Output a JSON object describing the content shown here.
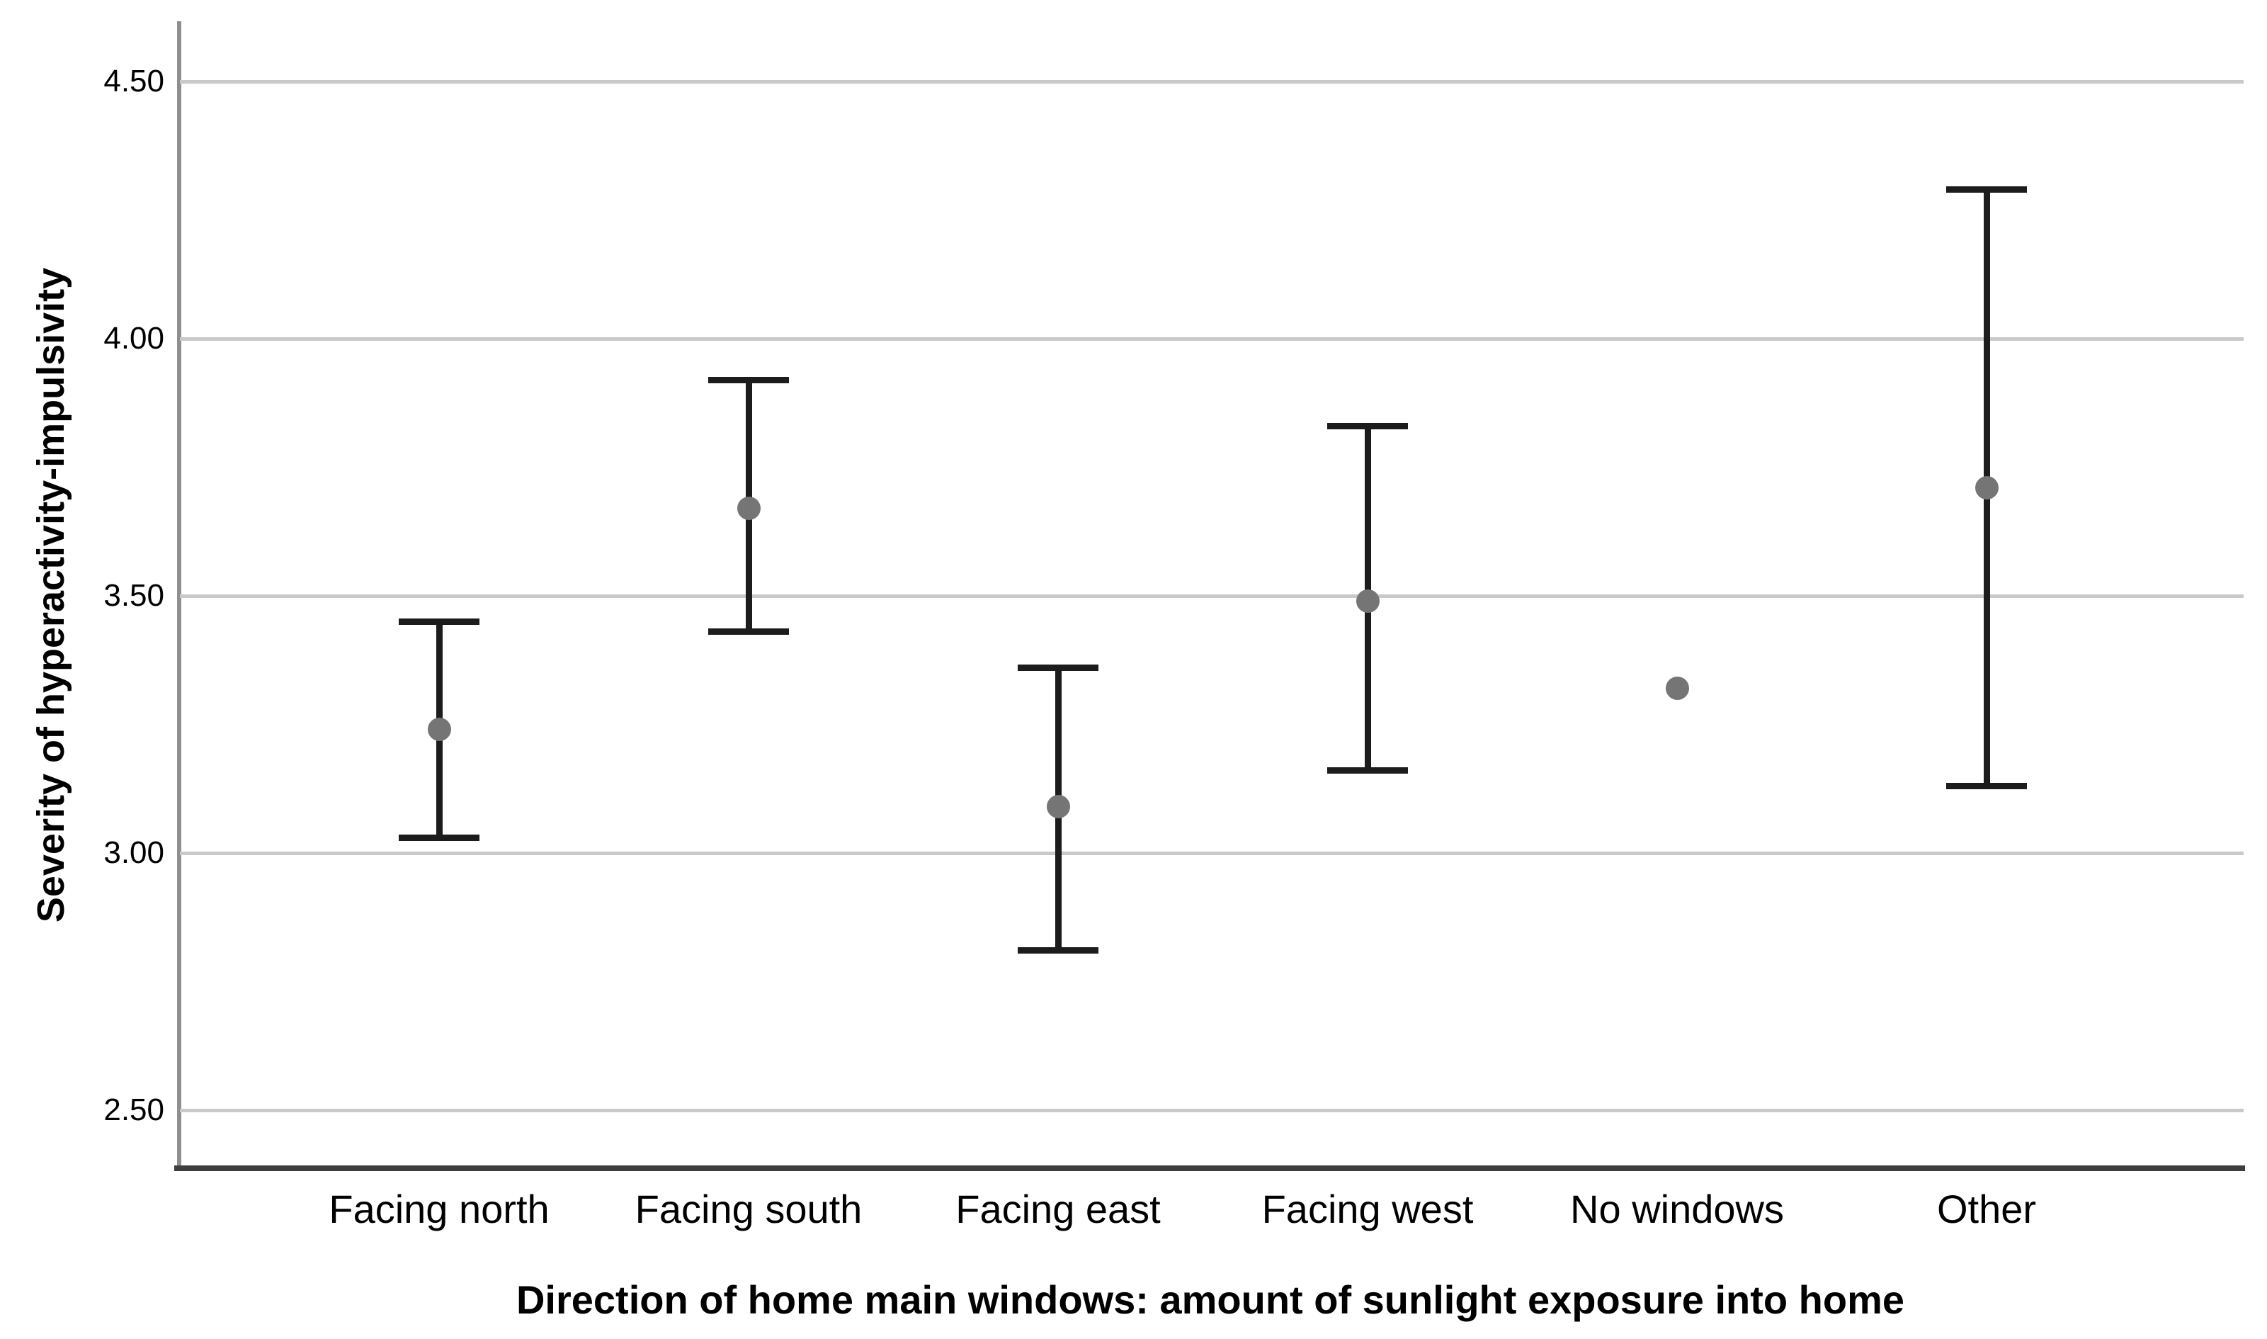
{
  "chart_data": {
    "type": "errorbar",
    "title": "",
    "xlabel": "Direction of home main windows: amount of sunlight exposure into home",
    "ylabel": "Severity of hyperactivity-impulsivity",
    "categories": [
      "Facing north",
      "Facing south",
      "Facing east",
      "Facing west",
      "No windows",
      "Other"
    ],
    "means": [
      3.24,
      3.67,
      3.09,
      3.49,
      3.32,
      3.71
    ],
    "ci_low": [
      3.03,
      3.43,
      2.81,
      3.16,
      null,
      3.13
    ],
    "ci_high": [
      3.45,
      3.92,
      3.36,
      3.83,
      null,
      4.29
    ],
    "y_ticks": [
      {
        "value": 4.5,
        "label": "4.50"
      },
      {
        "value": 4.0,
        "label": "4.00"
      },
      {
        "value": 3.5,
        "label": "3.50"
      },
      {
        "value": 3.0,
        "label": "3.00"
      },
      {
        "value": 2.5,
        "label": "2.50"
      }
    ],
    "ylim": [
      2.4,
      4.62
    ],
    "grid": "horizontal-only",
    "legend": "none",
    "marker_shape": "circle",
    "colors": {
      "marker": "#757575",
      "errorbar": "#1c1c1c",
      "gridline": "#c9c9c9",
      "y_axis": "#8f8f8f",
      "x_axis": "#3e3e3e",
      "text": "#000000",
      "background": "#ffffff"
    }
  }
}
